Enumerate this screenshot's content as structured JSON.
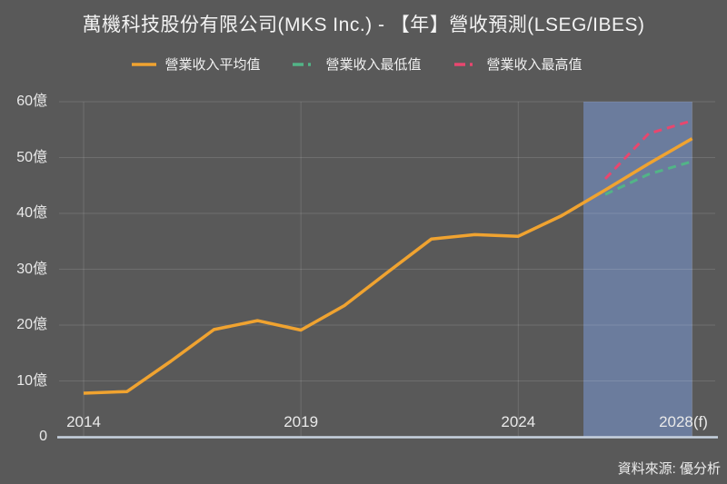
{
  "title": "萬機科技股份有限公司(MKS Inc.) - 【年】營收預測(LSEG/IBES)",
  "source_note": "資料來源: 優分析",
  "colors": {
    "background": "#595959",
    "gridline": "rgba(255,255,255,0.13)",
    "axis_line": "#c7d2df",
    "forecast_band": "#6b7c9d",
    "text": "#f0f0f0",
    "avg_line": "#f0a330",
    "min_line": "#52b487",
    "max_line": "#e8476f"
  },
  "legend": [
    {
      "label": "營業收入平均值",
      "color": "#f0a330",
      "dash": null
    },
    {
      "label": "營業收入最低值",
      "color": "#52b487",
      "dash": "12 5 3 20"
    },
    {
      "label": "營業收入最高值",
      "color": "#e8476f",
      "dash": "12 5 3 20"
    }
  ],
  "chart_data": {
    "type": "line",
    "title": "萬機科技股份有限公司(MKS Inc.) - 【年】營收預測(LSEG/IBES)",
    "unit": "億",
    "ylim": [
      0,
      60
    ],
    "grid": true,
    "legend_position": "top",
    "y_ticks": [
      {
        "value": 0,
        "label": "0"
      },
      {
        "value": 10,
        "label": "10億"
      },
      {
        "value": 20,
        "label": "20億"
      },
      {
        "value": 30,
        "label": "30億"
      },
      {
        "value": 40,
        "label": "40億"
      },
      {
        "value": 50,
        "label": "50億"
      },
      {
        "value": 60,
        "label": "60億"
      }
    ],
    "x_ticks": [
      {
        "year": 2014,
        "label": "2014"
      },
      {
        "year": 2019,
        "label": "2019"
      },
      {
        "year": 2024,
        "label": "2024"
      },
      {
        "year": 2028,
        "label": "2028(f)"
      }
    ],
    "forecast_band": {
      "from": 2025.5,
      "to": 2028
    },
    "series": [
      {
        "name": "營業收入平均值",
        "color": "#f0a330",
        "dash": null,
        "width": 3.5,
        "x": [
          2014,
          2015,
          2016,
          2017,
          2018,
          2019,
          2020,
          2021,
          2022,
          2023,
          2024,
          2025,
          2026,
          2027,
          2028
        ],
        "values": [
          7.8,
          8.1,
          13.5,
          19.2,
          20.8,
          19.1,
          23.5,
          29.5,
          35.4,
          36.2,
          35.9,
          39.6,
          44.2,
          48.9,
          53.4
        ]
      },
      {
        "name": "營業收入最低值",
        "color": "#52b487",
        "dash": "9 6",
        "width": 3,
        "x": [
          2026,
          2027,
          2028
        ],
        "values": [
          43.4,
          47.0,
          49.3
        ]
      },
      {
        "name": "營業收入最高值",
        "color": "#e8476f",
        "dash": "9 6",
        "width": 3,
        "x": [
          2026,
          2027,
          2028
        ],
        "values": [
          46.2,
          54.3,
          56.6
        ]
      }
    ]
  }
}
